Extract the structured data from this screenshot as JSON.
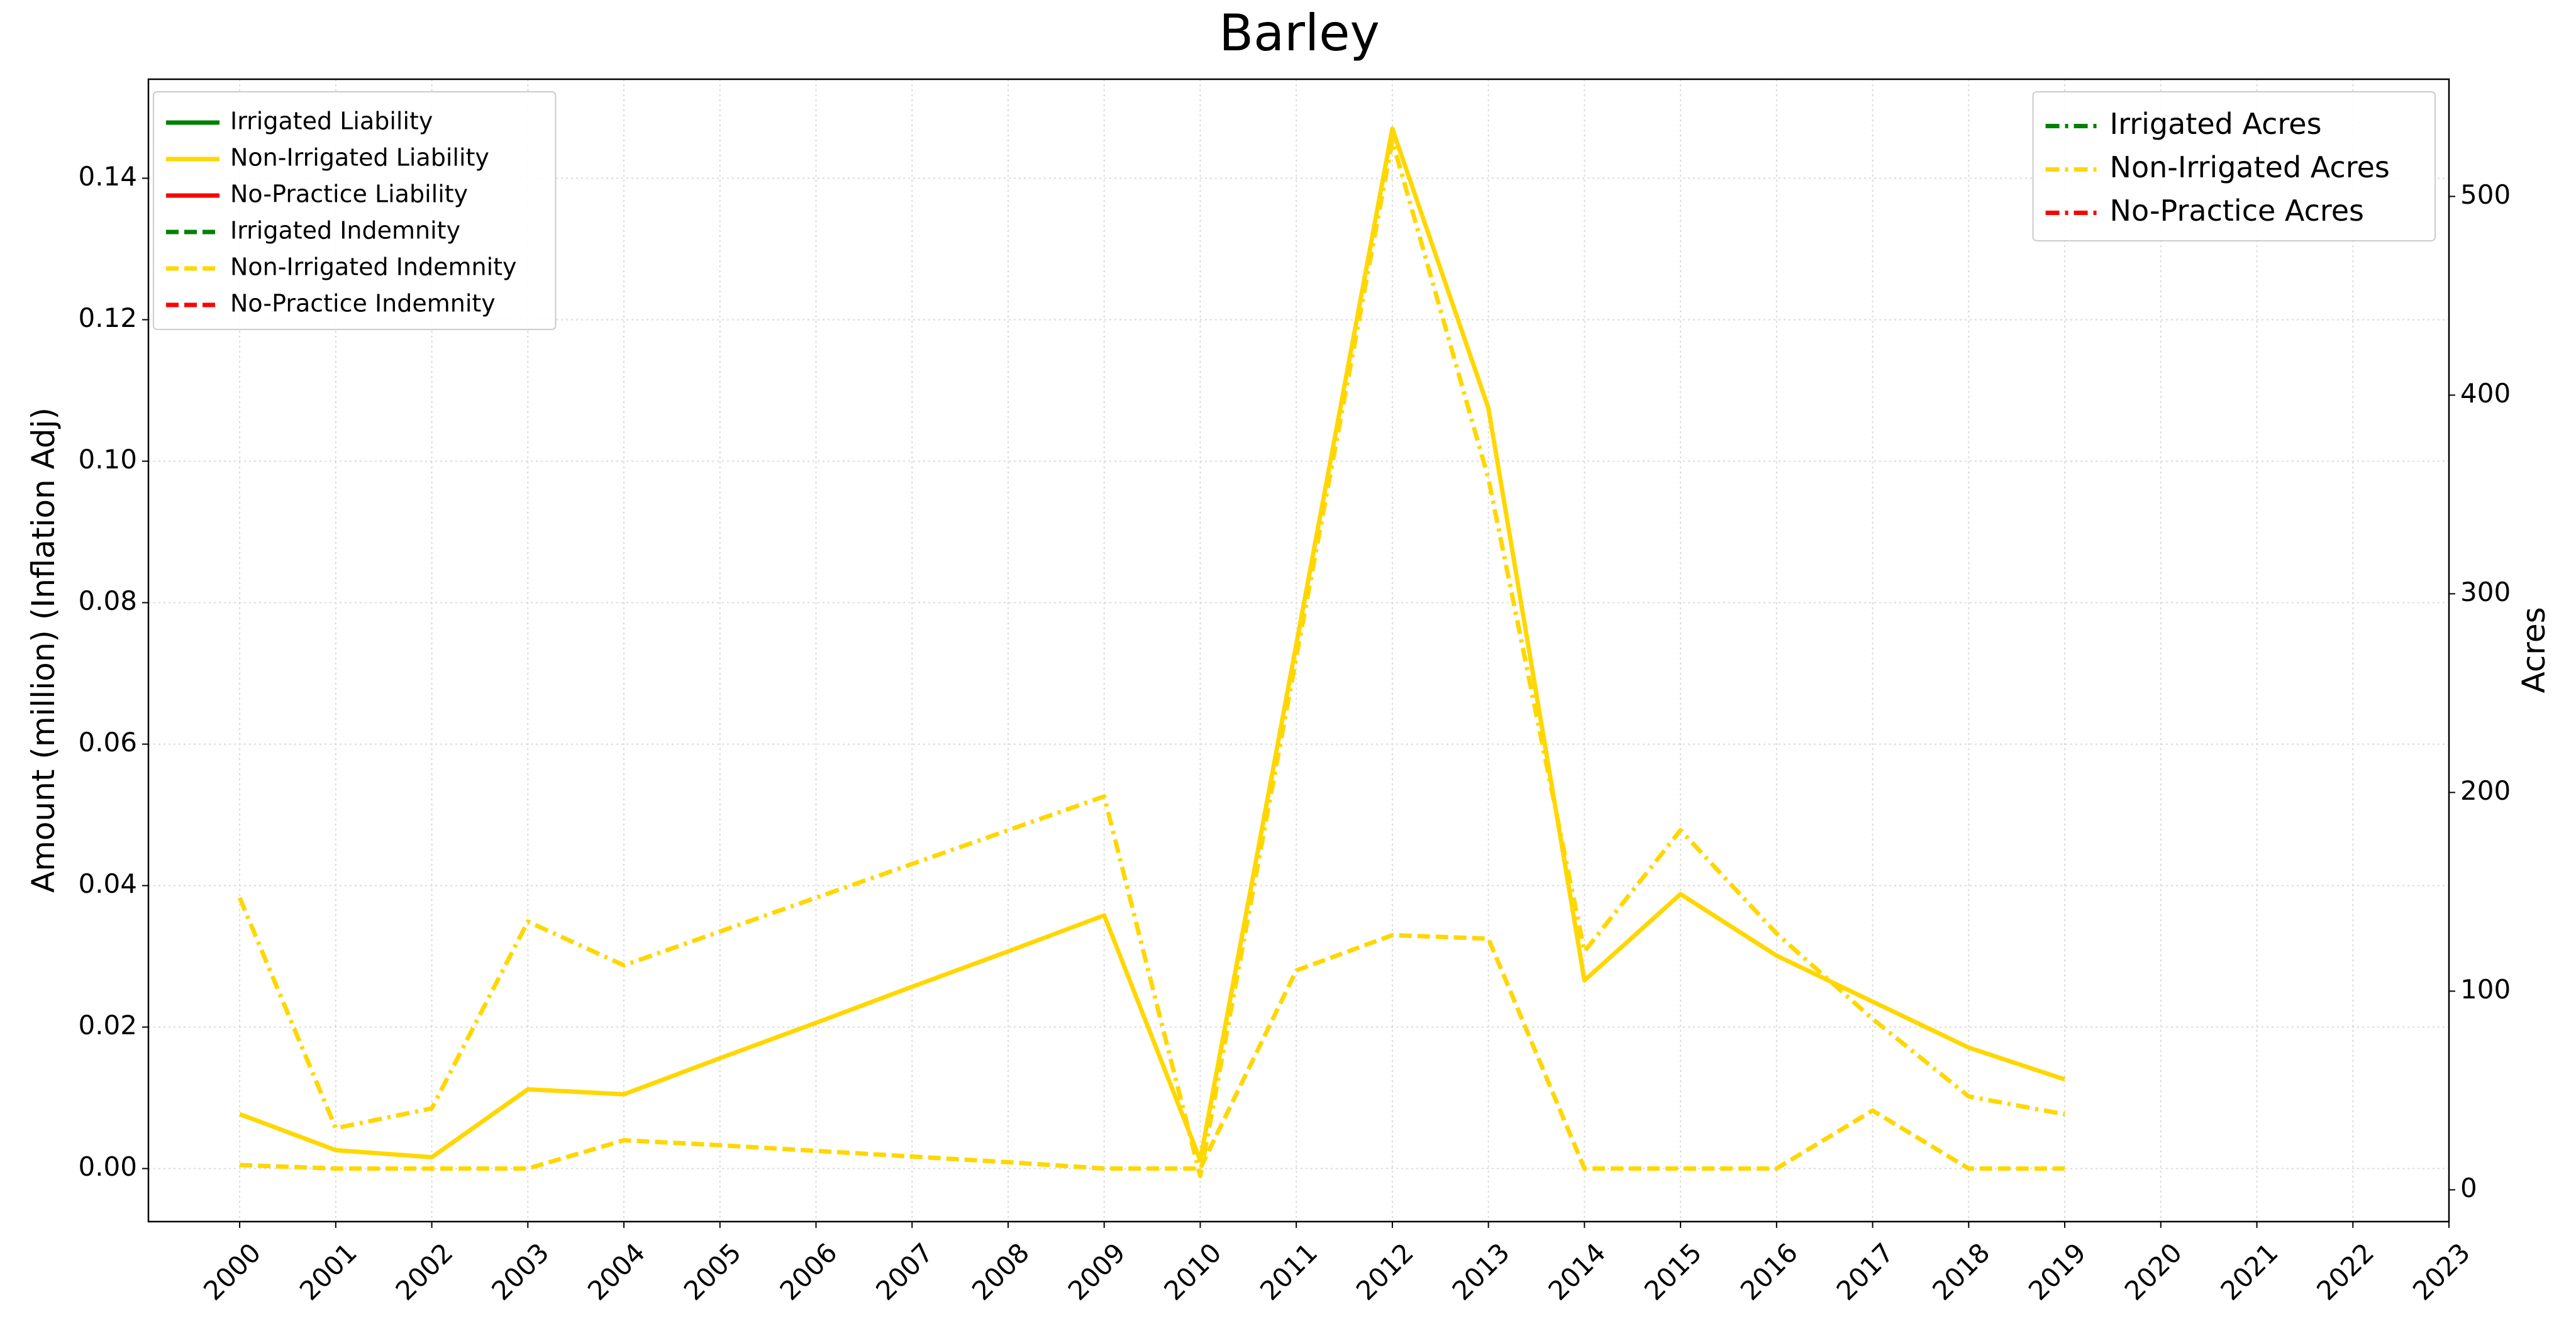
{
  "chart_data": {
    "type": "line",
    "title": "Barley",
    "ylabel": "Amount (million) (Inflation Adj)",
    "y2label": "Acres",
    "x": [
      2000,
      2001,
      2002,
      2003,
      2004,
      2005,
      2006,
      2007,
      2008,
      2009,
      2010,
      2011,
      2012,
      2013,
      2014,
      2015,
      2016,
      2017,
      2018,
      2019
    ],
    "xlim": [
      1999.05,
      2023
    ],
    "xticks": [
      2000,
      2001,
      2002,
      2003,
      2004,
      2005,
      2006,
      2007,
      2008,
      2009,
      2010,
      2011,
      2012,
      2013,
      2014,
      2015,
      2016,
      2017,
      2018,
      2019,
      2020,
      2021,
      2022,
      2023
    ],
    "ylim": [
      -0.0075,
      0.154
    ],
    "yticks": [
      {
        "value": 0,
        "label": "0.00"
      },
      {
        "value": 0.02,
        "label": "0.02"
      },
      {
        "value": 0.04,
        "label": "0.04"
      },
      {
        "value": 0.06,
        "label": "0.06"
      },
      {
        "value": 0.08,
        "label": "0.08"
      },
      {
        "value": 0.1,
        "label": "0.10"
      },
      {
        "value": 0.12,
        "label": "0.12"
      },
      {
        "value": 0.14,
        "label": "0.14"
      }
    ],
    "y2lim": [
      -16,
      559
    ],
    "y2ticks": [
      0,
      100,
      200,
      300,
      400,
      500
    ],
    "grid": true,
    "legend": "upper left",
    "legend2": "upper right",
    "series": [
      {
        "name": "Irrigated Liability",
        "color": "#008000",
        "style": "solid",
        "values": [
          null,
          null,
          null,
          null,
          null,
          null,
          null,
          null,
          null,
          null,
          null,
          null,
          null,
          null,
          null,
          null,
          null,
          null,
          null,
          null
        ]
      },
      {
        "name": "Non-Irrigated Liability",
        "color": "#FFD700",
        "style": "solid",
        "values": [
          0.0077,
          0.0026,
          0.0016,
          0.0112,
          0.0105,
          0.0156,
          0.0206,
          0.0257,
          0.0307,
          0.0358,
          0.0012,
          0.0741,
          0.147,
          0.1075,
          0.0266,
          0.0388,
          0.0301,
          0.0236,
          0.0171,
          0.0126
        ]
      },
      {
        "name": "No-Practice Liability",
        "color": "#FF0000",
        "style": "solid",
        "values": [
          null,
          null,
          null,
          null,
          null,
          null,
          null,
          null,
          null,
          null,
          null,
          null,
          null,
          null,
          null,
          null,
          null,
          null,
          null,
          null
        ]
      },
      {
        "name": "Irrigated Indemnity",
        "color": "#008000",
        "style": "dashed",
        "values": [
          null,
          null,
          null,
          null,
          null,
          null,
          null,
          null,
          null,
          null,
          null,
          null,
          null,
          null,
          null,
          null,
          null,
          null,
          null,
          null
        ]
      },
      {
        "name": "Non-Irrigated Indemnity",
        "color": "#FFD700",
        "style": "dashed",
        "values": [
          0.0005,
          0,
          0,
          0,
          0.004,
          0.0033,
          0.0025,
          0.0017,
          0.0009,
          0,
          0,
          0.028,
          0.033,
          0.0325,
          0,
          0,
          0,
          0.0082,
          0,
          0
        ]
      },
      {
        "name": "No-Practice Indemnity",
        "color": "#FF0000",
        "style": "dashed",
        "values": [
          null,
          null,
          null,
          null,
          null,
          null,
          null,
          null,
          null,
          null,
          null,
          null,
          null,
          null,
          null,
          null,
          null,
          null,
          null,
          null
        ]
      },
      {
        "name": "Irrigated Acres",
        "color": "#008000",
        "style": "dashdot",
        "axis": "y2",
        "values": [
          null,
          null,
          null,
          null,
          null,
          null,
          null,
          null,
          null,
          null,
          null,
          null,
          null,
          null,
          null,
          null,
          null,
          null,
          null,
          null
        ]
      },
      {
        "name": "Non-Irrigated Acres",
        "color": "#FFD700",
        "style": "dashdot",
        "axis": "y2",
        "values": [
          147,
          31,
          41,
          135,
          113,
          130,
          147,
          164,
          181,
          198,
          7,
          268,
          528,
          358,
          120,
          181,
          129,
          86,
          47,
          38
        ]
      },
      {
        "name": "No-Practice Acres",
        "color": "#FF0000",
        "style": "dashdot",
        "axis": "y2",
        "values": [
          null,
          null,
          null,
          null,
          null,
          null,
          null,
          null,
          null,
          null,
          null,
          null,
          null,
          null,
          null,
          null,
          null,
          null,
          null,
          null
        ]
      }
    ]
  }
}
